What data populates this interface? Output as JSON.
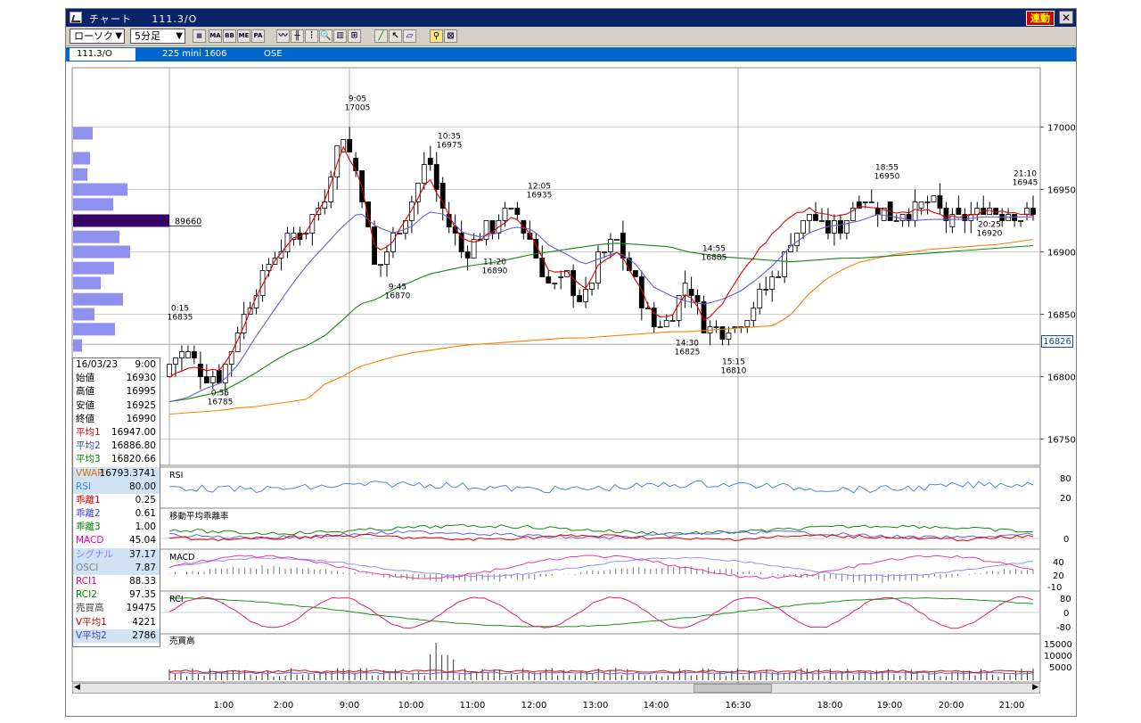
{
  "window": {
    "title": "チャート",
    "symbol_code": "111.3/O",
    "link_button": "連動",
    "close_glyph": "✕"
  },
  "toolbar": {
    "chart_type": "ローソク",
    "interval": "5分足",
    "icons": [
      "MA",
      "BB",
      "ME",
      "PA"
    ]
  },
  "infobar": {
    "code": "111.3/O",
    "name": "225 mini 1606",
    "market": "OSE"
  },
  "ohlc_panel": {
    "date": "16/03/23",
    "time": "9:00",
    "rows": [
      {
        "k": "始値",
        "v": "16930",
        "kc": "#000",
        "bg": ""
      },
      {
        "k": "高値",
        "v": "16995",
        "kc": "#000",
        "bg": ""
      },
      {
        "k": "安値",
        "v": "16925",
        "kc": "#000",
        "bg": ""
      },
      {
        "k": "終値",
        "v": "16990",
        "kc": "#000",
        "bg": ""
      },
      {
        "k": "平均1",
        "v": "16947.00",
        "kc": "#d00000",
        "bg": ""
      },
      {
        "k": "平均2",
        "v": "16886.80",
        "kc": "#4040c0",
        "bg": ""
      },
      {
        "k": "平均3",
        "v": "16820.66",
        "kc": "#008000",
        "bg": ""
      },
      {
        "k": "VWAP",
        "v": "16793.3741",
        "kc": "#e07000",
        "bg": "blue"
      },
      {
        "k": "RSI",
        "v": "80.00",
        "kc": "#4080ff",
        "bg": "blue"
      },
      {
        "k": "乖離1",
        "v": "0.25",
        "kc": "#d00000",
        "bg": ""
      },
      {
        "k": "乖離2",
        "v": "0.61",
        "kc": "#4040c0",
        "bg": ""
      },
      {
        "k": "乖離3",
        "v": "1.00",
        "kc": "#008000",
        "bg": ""
      },
      {
        "k": "MACD",
        "v": "45.04",
        "kc": "#e000a0",
        "bg": ""
      },
      {
        "k": "シグナル",
        "v": "37.17",
        "kc": "#8080ff",
        "bg": "blue"
      },
      {
        "k": "OSCI",
        "v": "7.87",
        "kc": "#808080",
        "bg": "blue"
      },
      {
        "k": "RCI1",
        "v": "88.33",
        "kc": "#e0007a",
        "bg": ""
      },
      {
        "k": "RCI2",
        "v": "97.35",
        "kc": "#008000",
        "bg": ""
      },
      {
        "k": "売買高",
        "v": "19475",
        "kc": "#444",
        "bg": ""
      },
      {
        "k": "V平均1",
        "v": "4221",
        "kc": "#d00000",
        "bg": ""
      },
      {
        "k": "V平均2",
        "v": "2786",
        "kc": "#4040c0",
        "bg": "blue"
      }
    ]
  },
  "colors": {
    "candle": "#000000",
    "ma1": "#e00000",
    "ma2": "#6060e0",
    "ma3": "#138a13",
    "vwap": "#ff7f00",
    "rsi": "#4a86e8",
    "macd": "#e040a0",
    "signal": "#9090ff",
    "rci1": "#e0207a",
    "rci2": "#149614",
    "volume_profile": "#9090f0",
    "volume_profile_highlight": "#330066"
  },
  "chart_data": [
    {
      "type": "candlestick",
      "title": "225 mini 1606",
      "interval": "5分足",
      "ylim": [
        16715,
        17070
      ],
      "yticks": [
        "17000",
        "16950",
        "16900",
        "16850",
        "16800",
        "16750"
      ],
      "xticks": [
        "1:00",
        "2:00",
        "9:00",
        "10:00",
        "11:00",
        "12:00",
        "13:00",
        "14:00",
        "16:30",
        "18:00",
        "19:00",
        "20:00",
        "21:00"
      ],
      "current_price": "16826",
      "profile_label": "89660",
      "annotations": [
        {
          "time": "0:15",
          "price": "16835"
        },
        {
          "time": "0:55",
          "price": "16785"
        },
        {
          "time": "9:05",
          "price": "17005"
        },
        {
          "time": "9:45",
          "price": "16870"
        },
        {
          "time": "10:35",
          "price": "16975"
        },
        {
          "time": "11:20",
          "price": "16890"
        },
        {
          "time": "12:05",
          "price": "16935"
        },
        {
          "time": "14:30",
          "price": "16825"
        },
        {
          "time": "14:55",
          "price": "16885"
        },
        {
          "time": "15:15",
          "price": "16810"
        },
        {
          "time": "18:55",
          "price": "16950"
        },
        {
          "time": "20:25",
          "price": "16920"
        },
        {
          "time": "21:10",
          "price": "16945"
        }
      ],
      "series_anchors": {
        "close": [
          16810,
          16822,
          16798,
          16800,
          16838,
          16870,
          16898,
          16912,
          16920,
          16945,
          17000,
          16955,
          16880,
          16915,
          16940,
          16975,
          16925,
          16900,
          16912,
          16925,
          16932,
          16905,
          16870,
          16880,
          16860,
          16900,
          16908,
          16872,
          16838,
          16848,
          16880,
          16840,
          16838,
          16842,
          16862,
          16880,
          16910,
          16930,
          16918,
          16920,
          16945,
          16935,
          16928,
          16935,
          16940,
          16925,
          16925,
          16935,
          16932,
          16930,
          16928
        ],
        "ma1": [
          16800,
          16808,
          16806,
          16804,
          16830,
          16862,
          16890,
          16908,
          16918,
          16940,
          16985,
          16960,
          16898,
          16910,
          16932,
          16960,
          16935,
          16908,
          16910,
          16920,
          16928,
          16912,
          16885,
          16885,
          16870,
          16892,
          16900,
          16878,
          16850,
          16848,
          16868,
          16845,
          16858,
          16880,
          16900,
          16915,
          16928,
          16935,
          16930,
          16928,
          16938,
          16935,
          16930,
          16933,
          16933,
          16928,
          16928,
          16932,
          16932,
          16931,
          16930
        ],
        "ma2": [
          16780,
          16783,
          16790,
          16795,
          16810,
          16832,
          16852,
          16872,
          16890,
          16905,
          16920,
          16932,
          16920,
          16915,
          16920,
          16932,
          16930,
          16915,
          16912,
          16915,
          16920,
          16918,
          16905,
          16898,
          16890,
          16895,
          16900,
          16890,
          16872,
          16865,
          16860,
          16858,
          16862,
          16868,
          16878,
          16890,
          16905,
          16915,
          16920,
          16922,
          16925,
          16930,
          16928,
          16925,
          16926,
          16926,
          16926,
          16928,
          16928,
          16928,
          16928
        ],
        "ma3": [
          16780,
          16782,
          16785,
          16788,
          16795,
          16803,
          16812,
          16820,
          16825,
          16833,
          16845,
          16858,
          16862,
          16870,
          16876,
          16882,
          16885,
          16888,
          16890,
          16892,
          16895,
          16898,
          16900,
          16902,
          16904,
          16906,
          16907,
          16906,
          16905,
          16904,
          16900,
          16898,
          16896,
          16895,
          16894,
          16893,
          16892,
          16893,
          16894,
          16895,
          16895,
          16896,
          16897,
          16898,
          16899,
          16900,
          16901,
          16902,
          16903,
          16904,
          16905
        ],
        "vwap": [
          16770,
          16771,
          16772,
          16773,
          16775,
          16776,
          16778,
          16780,
          16782,
          16794,
          16800,
          16808,
          16812,
          16816,
          16819,
          16821,
          16823,
          16825,
          16826,
          16827,
          16828,
          16829,
          16830,
          16831,
          16831,
          16832,
          16833,
          16834,
          16835,
          16836,
          16836,
          16837,
          16838,
          16839,
          16840,
          16841,
          16850,
          16866,
          16878,
          16886,
          16892,
          16895,
          16898,
          16900,
          16902,
          16903,
          16904,
          16905,
          16906,
          16908,
          16910
        ]
      }
    },
    {
      "type": "line",
      "title": "RSI",
      "yticks": [
        "80",
        "20"
      ],
      "ylim": [
        0,
        100
      ]
    },
    {
      "type": "line",
      "title": "移動平均乖離率",
      "yticks": [
        "0"
      ]
    },
    {
      "type": "line",
      "title": "MACD",
      "yticks": [
        "40",
        "20",
        "-10"
      ]
    },
    {
      "type": "line",
      "title": "RCI",
      "yticks": [
        "80",
        "0",
        "-80"
      ],
      "ylim": [
        -100,
        100
      ]
    },
    {
      "type": "bar",
      "title": "売買高",
      "yticks": [
        "15000",
        "10000",
        "5000"
      ]
    }
  ]
}
